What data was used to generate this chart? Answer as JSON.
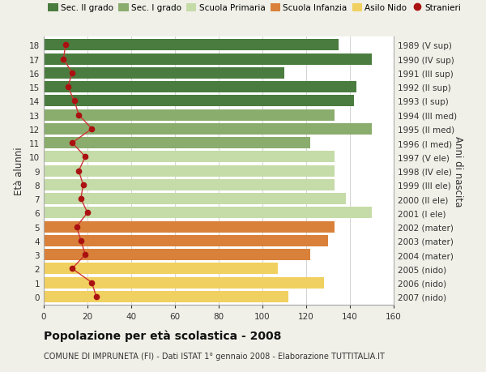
{
  "ages": [
    18,
    17,
    16,
    15,
    14,
    13,
    12,
    11,
    10,
    9,
    8,
    7,
    6,
    5,
    4,
    3,
    2,
    1,
    0
  ],
  "anni_nascita": [
    "1989 (V sup)",
    "1990 (IV sup)",
    "1991 (III sup)",
    "1992 (II sup)",
    "1993 (I sup)",
    "1994 (III med)",
    "1995 (II med)",
    "1996 (I med)",
    "1997 (V ele)",
    "1998 (IV ele)",
    "1999 (III ele)",
    "2000 (II ele)",
    "2001 (I ele)",
    "2002 (mater)",
    "2003 (mater)",
    "2004 (mater)",
    "2005 (nido)",
    "2006 (nido)",
    "2007 (nido)"
  ],
  "bar_values": [
    135,
    150,
    110,
    143,
    142,
    133,
    150,
    122,
    133,
    133,
    133,
    138,
    150,
    133,
    130,
    122,
    107,
    128,
    112
  ],
  "bar_colors": [
    "#4a7c3f",
    "#4a7c3f",
    "#4a7c3f",
    "#4a7c3f",
    "#4a7c3f",
    "#8aad6e",
    "#8aad6e",
    "#8aad6e",
    "#c5dba8",
    "#c5dba8",
    "#c5dba8",
    "#c5dba8",
    "#c5dba8",
    "#d9813a",
    "#d9813a",
    "#d9813a",
    "#f0d060",
    "#f0d060",
    "#f0d060"
  ],
  "stranieri_values": [
    10,
    9,
    13,
    11,
    14,
    16,
    22,
    13,
    19,
    16,
    18,
    17,
    20,
    15,
    17,
    19,
    13,
    22,
    24
  ],
  "legend_labels": [
    "Sec. II grado",
    "Sec. I grado",
    "Scuola Primaria",
    "Scuola Infanzia",
    "Asilo Nido",
    "Stranieri"
  ],
  "legend_colors": [
    "#4a7c3f",
    "#8aad6e",
    "#c5dba8",
    "#d9813a",
    "#f0d060",
    "#aa1111"
  ],
  "title": "Popolazione per età scolastica - 2008",
  "subtitle": "COMUNE DI IMPRUNETA (FI) - Dati ISTAT 1° gennaio 2008 - Elaborazione TUTTITALIA.IT",
  "ylabel_left": "Età alunni",
  "ylabel_right": "Anni di nascita",
  "xlim": [
    0,
    160
  ],
  "bg_color": "#f0f0e8",
  "plot_bg_color": "#ffffff",
  "grid_color": "#cccccc",
  "stranieri_color": "#aa1111",
  "stranieri_line_color": "#cc3333"
}
